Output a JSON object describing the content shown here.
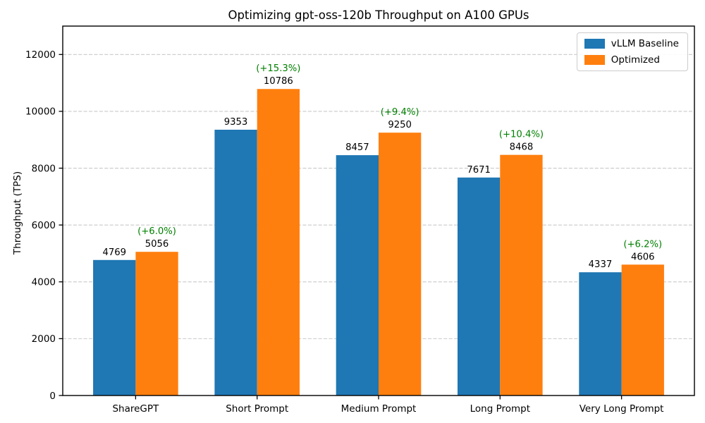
{
  "chart_data": {
    "type": "bar",
    "title": "Optimizing gpt-oss-120b Throughput on A100 GPUs",
    "xlabel": "",
    "ylabel": "Throughput (TPS)",
    "categories": [
      "ShareGPT",
      "Short Prompt",
      "Medium Prompt",
      "Long Prompt",
      "Very Long Prompt"
    ],
    "series": [
      {
        "name": "vLLM Baseline",
        "color": "#1f77b4",
        "values": [
          4769,
          9353,
          8457,
          7671,
          4337
        ]
      },
      {
        "name": "Optimized",
        "color": "#ff7f0e",
        "values": [
          5056,
          10786,
          9250,
          8468,
          4606
        ]
      }
    ],
    "improvement_labels": [
      "(+6.0%)",
      "(+15.3%)",
      "(+9.4%)",
      "(+10.4%)",
      "(+6.2%)"
    ],
    "improvement_color": "#008000",
    "ylim": [
      0,
      13000
    ],
    "yticks": [
      0,
      2000,
      4000,
      6000,
      8000,
      10000,
      12000
    ],
    "grid": "horizontal-dashed",
    "legend_position": "upper right",
    "bar_group_width": 0.7
  }
}
